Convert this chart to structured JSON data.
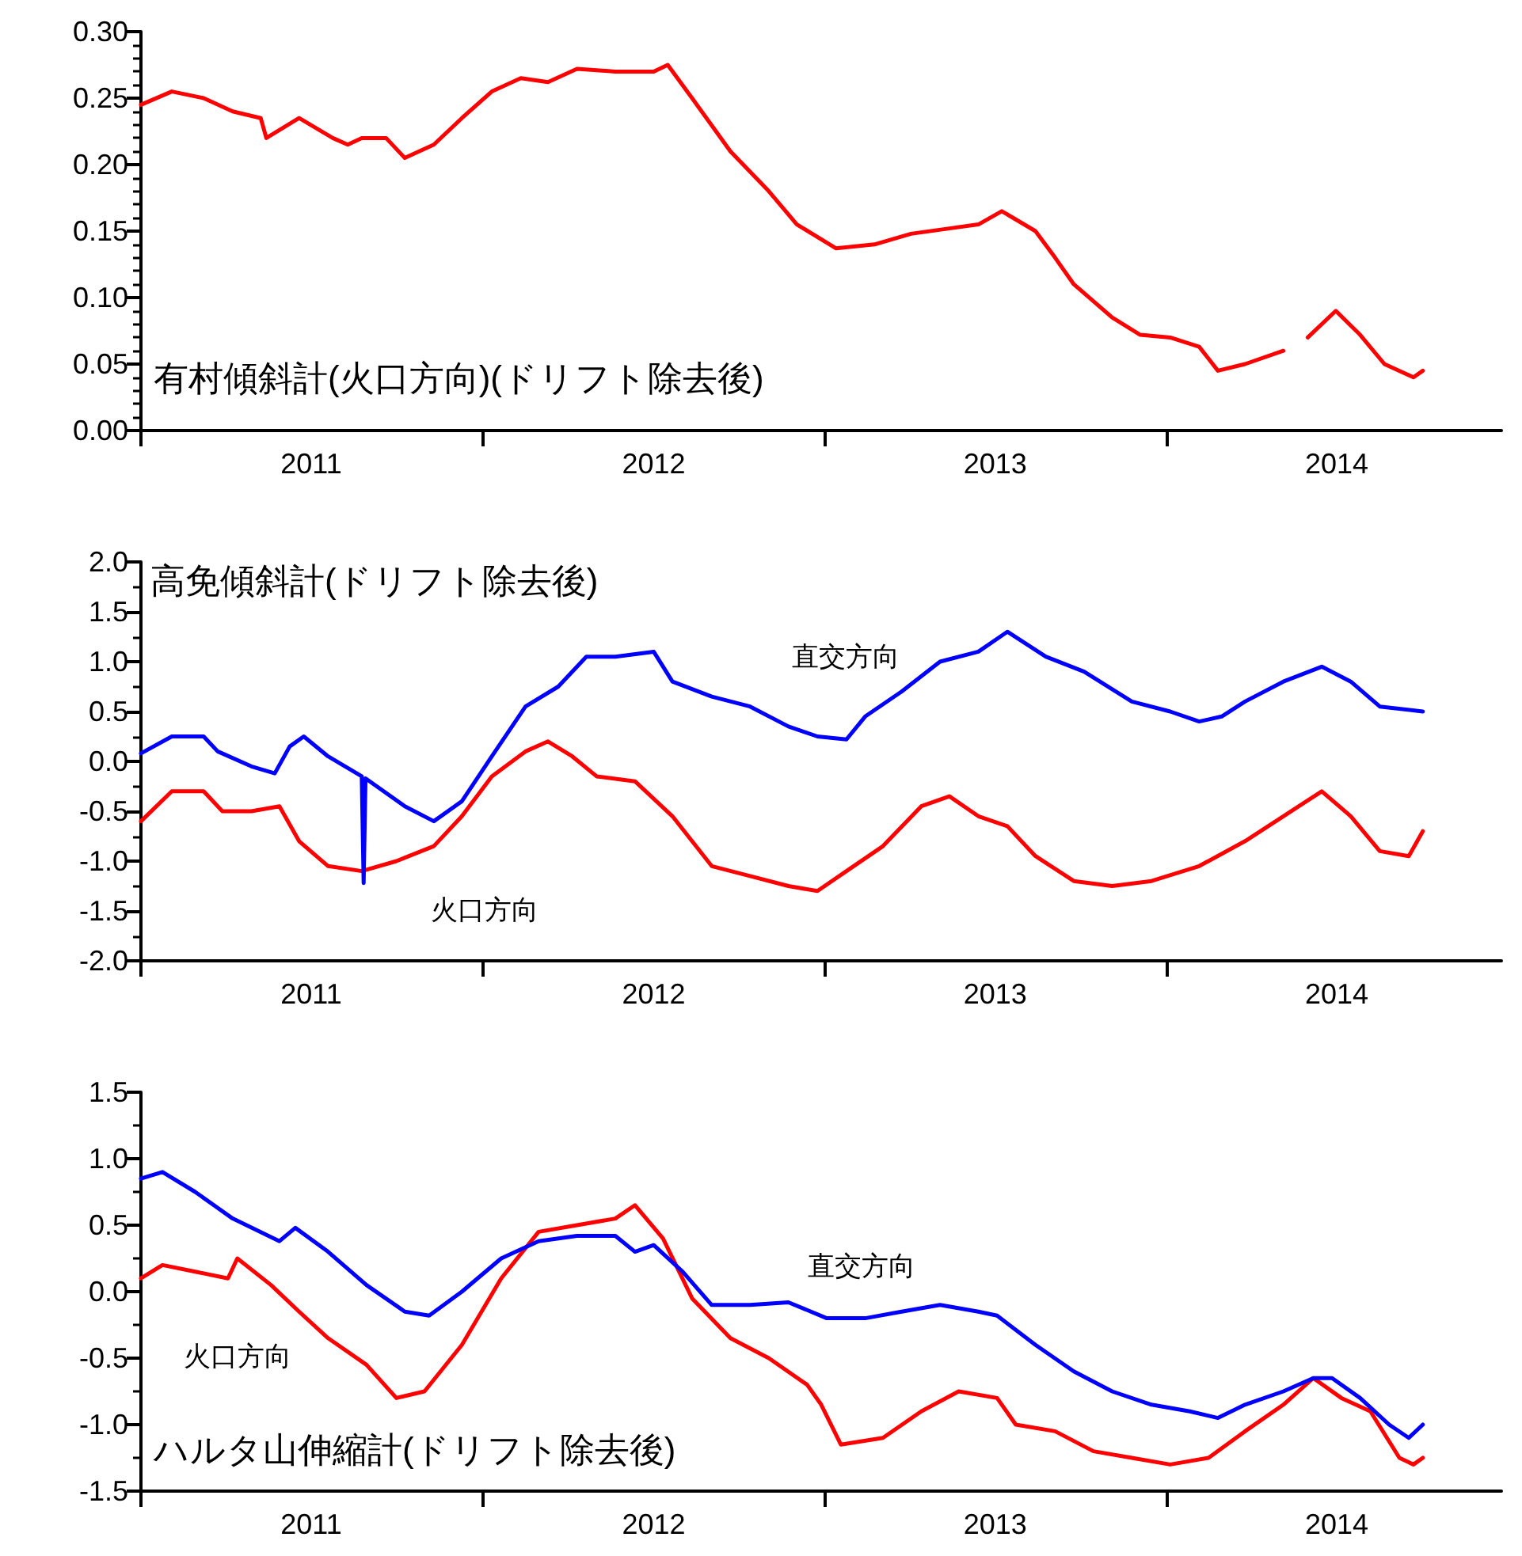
{
  "chart_data": [
    {
      "type": "line",
      "title": "有村傾斜計(火口方向)(ドリフト除去後)",
      "xlim": [
        "2011-01-01",
        "2014-12-25"
      ],
      "ylim": [
        0,
        0.3
      ],
      "xticks": [
        {
          "value": "2011-01-01",
          "label": null
        },
        {
          "value": "2011-07-02",
          "label": "2011"
        },
        {
          "value": "2012-01-01",
          "label": null
        },
        {
          "value": "2012-07-02",
          "label": "2012"
        },
        {
          "value": "2013-01-01",
          "label": null
        },
        {
          "value": "2013-07-02",
          "label": "2013"
        },
        {
          "value": "2014-01-01",
          "label": null
        },
        {
          "value": "2014-07-02",
          "label": "2014"
        }
      ],
      "yticks": [
        {
          "value": 0,
          "label": "0.00"
        },
        {
          "value": 0.05,
          "label": "0.05"
        },
        {
          "value": 0.1,
          "label": "0.10"
        },
        {
          "value": 0.15,
          "label": "0.15"
        },
        {
          "value": 0.2,
          "label": "0.20"
        },
        {
          "value": 0.25,
          "label": "0.25"
        },
        {
          "value": 0.3,
          "label": "0.30"
        }
      ],
      "grid": false,
      "marker": "none",
      "line_style": "solid",
      "series": [
        {
          "color": "#ff0000",
          "x": [
            "2011-01-01",
            "2011-02-03",
            "2011-03-09",
            "2011-04-09",
            "2011-05-09",
            "2011-05-15",
            "2011-06-19",
            "2011-07-25",
            "2011-08-10",
            "2011-08-25",
            "2011-09-20",
            "2011-10-10",
            "2011-11-10",
            "2011-12-10",
            "2012-01-11",
            "2012-02-11",
            "2012-03-11",
            "2012-04-11",
            "2012-05-22",
            "2012-07-02",
            "2012-07-17",
            "2012-08-12",
            "2012-09-22",
            "2012-11-02",
            "2012-12-02",
            "2013-01-13",
            "2013-02-23",
            "2013-04-03",
            "2013-05-14",
            "2013-06-14",
            "2013-07-09",
            "2013-08-14",
            "2013-09-04",
            "2013-09-24",
            "2013-11-04",
            "2013-12-04",
            "2014-01-05",
            "2014-02-05",
            "2014-02-25",
            "2014-03-26",
            "2014-05-06",
            "2014-05-20",
            "2014-06-01",
            "2014-07-01",
            "2014-07-27",
            "2014-08-22",
            "2014-09-22",
            "2014-10-02"
          ],
          "values": [
            0.245,
            0.255,
            0.25,
            0.24,
            0.235,
            0.22,
            0.235,
            0.22,
            0.215,
            0.22,
            0.22,
            0.205,
            0.215,
            0.235,
            0.255,
            0.265,
            0.262,
            0.272,
            0.27,
            0.27,
            0.275,
            0.25,
            0.21,
            0.18,
            0.155,
            0.137,
            0.14,
            0.148,
            0.152,
            0.155,
            0.165,
            0.15,
            0.13,
            0.11,
            0.085,
            0.072,
            0.07,
            0.063,
            0.045,
            0.05,
            0.06,
            null,
            0.07,
            0.09,
            0.072,
            0.05,
            0.04,
            0.045
          ]
        }
      ]
    },
    {
      "type": "line",
      "title": "高免傾斜計(ドリフト除去後)",
      "xlim": [
        "2011-01-01",
        "2014-12-25"
      ],
      "ylim": [
        -2,
        2
      ],
      "xticks": [
        {
          "value": "2011-01-01",
          "label": null
        },
        {
          "value": "2011-07-02",
          "label": "2011"
        },
        {
          "value": "2012-01-01",
          "label": null
        },
        {
          "value": "2012-07-02",
          "label": "2012"
        },
        {
          "value": "2013-01-01",
          "label": null
        },
        {
          "value": "2013-07-02",
          "label": "2013"
        },
        {
          "value": "2014-01-01",
          "label": null
        },
        {
          "value": "2014-07-02",
          "label": "2014"
        }
      ],
      "yticks": [
        {
          "value": -2,
          "label": "-2.0"
        },
        {
          "value": -1.5,
          "label": "-1.5"
        },
        {
          "value": -1,
          "label": "-1.0"
        },
        {
          "value": -0.5,
          "label": "-0.5"
        },
        {
          "value": 0,
          "label": "0.0"
        },
        {
          "value": 0.5,
          "label": "0.5"
        },
        {
          "value": 1,
          "label": "1.0"
        },
        {
          "value": 1.5,
          "label": "1.5"
        },
        {
          "value": 2,
          "label": "2.0"
        }
      ],
      "grid": false,
      "marker": "none",
      "line_style": "solid",
      "annotations": [
        "直交方向",
        "火口方向"
      ],
      "series": [
        {
          "color": "#ff0000",
          "x": [
            "2011-01-01",
            "2011-02-03",
            "2011-03-09",
            "2011-03-29",
            "2011-04-29",
            "2011-05-29",
            "2011-06-19",
            "2011-07-20",
            "2011-08-25",
            "2011-10-01",
            "2011-11-10",
            "2011-12-10",
            "2012-01-11",
            "2012-02-16",
            "2012-03-11",
            "2012-04-06",
            "2012-05-02",
            "2012-06-12",
            "2012-07-22",
            "2012-09-02",
            "2012-10-13",
            "2012-11-23",
            "2012-12-24",
            "2013-01-24",
            "2013-03-04",
            "2013-04-14",
            "2013-05-14",
            "2013-06-14",
            "2013-07-15",
            "2013-08-14",
            "2013-09-24",
            "2013-11-04",
            "2013-12-16",
            "2014-02-05",
            "2014-03-26",
            "2014-05-06",
            "2014-06-16",
            "2014-07-17",
            "2014-08-17",
            "2014-09-17",
            "2014-10-02"
          ],
          "values": [
            -0.6,
            -0.3,
            -0.3,
            -0.5,
            -0.5,
            -0.45,
            -0.8,
            -1.05,
            -1.1,
            -1.0,
            -0.85,
            -0.55,
            -0.15,
            0.1,
            0.2,
            0.05,
            -0.15,
            -0.2,
            -0.55,
            -1.05,
            -1.15,
            -1.25,
            -1.3,
            -1.1,
            -0.85,
            -0.45,
            -0.35,
            -0.55,
            -0.65,
            -0.95,
            -1.2,
            -1.25,
            -1.2,
            -1.05,
            -0.8,
            -0.55,
            -0.3,
            -0.55,
            -0.9,
            -0.95,
            -0.7
          ]
        },
        {
          "color": "#0000ff",
          "x": [
            "2011-01-01",
            "2011-02-03",
            "2011-03-09",
            "2011-03-24",
            "2011-04-29",
            "2011-05-24",
            "2011-06-09",
            "2011-06-24",
            "2011-07-20",
            "2011-08-25",
            "2011-08-27",
            "2011-08-29",
            "2011-10-10",
            "2011-11-10",
            "2011-12-10",
            "2012-01-11",
            "2012-02-16",
            "2012-03-22",
            "2012-04-21",
            "2012-05-22",
            "2012-07-02",
            "2012-07-22",
            "2012-09-02",
            "2012-10-13",
            "2012-11-23",
            "2012-12-24",
            "2013-01-24",
            "2013-02-13",
            "2013-03-24",
            "2013-05-04",
            "2013-06-14",
            "2013-07-15",
            "2013-08-25",
            "2013-10-05",
            "2013-11-25",
            "2014-01-05",
            "2014-02-05",
            "2014-03-01",
            "2014-03-26",
            "2014-05-06",
            "2014-06-16",
            "2014-07-17",
            "2014-08-17",
            "2014-10-02"
          ],
          "values": [
            0.08,
            0.25,
            0.25,
            0.1,
            -0.05,
            -0.12,
            0.15,
            0.25,
            0.05,
            -0.15,
            -1.22,
            -0.17,
            -0.45,
            -0.6,
            -0.4,
            0.05,
            0.55,
            0.75,
            1.05,
            1.05,
            1.1,
            0.8,
            0.65,
            0.55,
            0.35,
            0.25,
            0.22,
            0.45,
            0.7,
            1.0,
            1.1,
            1.3,
            1.05,
            0.9,
            0.6,
            0.5,
            0.4,
            0.45,
            0.6,
            0.8,
            0.95,
            0.8,
            0.55,
            0.5
          ]
        }
      ]
    },
    {
      "type": "line",
      "title": "ハルタ山伸縮計(ドリフト除去後)",
      "xlim": [
        "2011-01-01",
        "2014-12-25"
      ],
      "ylim": [
        -1.5,
        1.5
      ],
      "xticks": [
        {
          "value": "2011-01-01",
          "label": null
        },
        {
          "value": "2011-07-02",
          "label": "2011"
        },
        {
          "value": "2012-01-01",
          "label": null
        },
        {
          "value": "2012-07-02",
          "label": "2012"
        },
        {
          "value": "2013-01-01",
          "label": null
        },
        {
          "value": "2013-07-02",
          "label": "2013"
        },
        {
          "value": "2014-01-01",
          "label": null
        },
        {
          "value": "2014-07-02",
          "label": "2014"
        }
      ],
      "yticks": [
        {
          "value": -1.5,
          "label": "-1.5"
        },
        {
          "value": -1,
          "label": "-1.0"
        },
        {
          "value": -0.5,
          "label": "-0.5"
        },
        {
          "value": 0,
          "label": "0.0"
        },
        {
          "value": 0.5,
          "label": "0.5"
        },
        {
          "value": 1,
          "label": "1.0"
        },
        {
          "value": 1.5,
          "label": "1.5"
        }
      ],
      "grid": false,
      "marker": "none",
      "line_style": "solid",
      "annotations": [
        "直交方向",
        "火口方向"
      ],
      "series": [
        {
          "color": "#ff0000",
          "x": [
            "2011-01-01",
            "2011-01-24",
            "2011-02-28",
            "2011-04-04",
            "2011-04-14",
            "2011-05-20",
            "2011-06-19",
            "2011-07-20",
            "2011-08-30",
            "2011-10-01",
            "2011-10-31",
            "2011-12-10",
            "2012-01-21",
            "2012-03-01",
            "2012-04-11",
            "2012-05-22",
            "2012-06-12",
            "2012-07-12",
            "2012-08-12",
            "2012-09-22",
            "2012-11-02",
            "2012-12-13",
            "2012-12-28",
            "2013-01-18",
            "2013-03-04",
            "2013-04-14",
            "2013-05-24",
            "2013-07-04",
            "2013-07-24",
            "2013-09-04",
            "2013-10-15",
            "2013-11-25",
            "2014-01-05",
            "2014-02-15",
            "2014-03-26",
            "2014-05-06",
            "2014-06-07",
            "2014-07-07",
            "2014-08-07",
            "2014-09-07",
            "2014-09-22",
            "2014-10-02"
          ],
          "values": [
            0.1,
            0.2,
            0.15,
            0.1,
            0.25,
            0.05,
            -0.15,
            -0.35,
            -0.55,
            -0.8,
            -0.75,
            -0.4,
            0.1,
            0.45,
            0.5,
            0.55,
            0.65,
            0.4,
            -0.05,
            -0.35,
            -0.5,
            -0.7,
            -0.85,
            -1.15,
            -1.1,
            -0.9,
            -0.75,
            -0.8,
            -1.0,
            -1.05,
            -1.2,
            -1.25,
            -1.3,
            -1.25,
            -1.05,
            -0.85,
            -0.65,
            -0.8,
            -0.9,
            -1.25,
            -1.3,
            -1.25
          ]
        },
        {
          "color": "#0000ff",
          "x": [
            "2011-01-01",
            "2011-01-24",
            "2011-02-28",
            "2011-04-09",
            "2011-05-29",
            "2011-06-15",
            "2011-07-20",
            "2011-08-30",
            "2011-10-10",
            "2011-11-05",
            "2011-12-10",
            "2012-01-21",
            "2012-03-01",
            "2012-04-11",
            "2012-05-22",
            "2012-06-12",
            "2012-07-02",
            "2012-08-02",
            "2012-09-02",
            "2012-10-13",
            "2012-11-23",
            "2013-01-03",
            "2013-02-13",
            "2013-03-24",
            "2013-05-04",
            "2013-06-14",
            "2013-07-04",
            "2013-08-14",
            "2013-09-24",
            "2013-11-04",
            "2013-12-16",
            "2014-01-26",
            "2014-02-25",
            "2014-03-26",
            "2014-05-06",
            "2014-06-07",
            "2014-06-27",
            "2014-07-27",
            "2014-08-27",
            "2014-09-17",
            "2014-10-02"
          ],
          "values": [
            0.85,
            0.9,
            0.75,
            0.55,
            0.38,
            0.48,
            0.3,
            0.05,
            -0.15,
            -0.18,
            0.0,
            0.25,
            0.38,
            0.42,
            0.42,
            0.3,
            0.35,
            0.15,
            -0.1,
            -0.1,
            -0.08,
            -0.2,
            -0.2,
            -0.15,
            -0.1,
            -0.15,
            -0.18,
            -0.4,
            -0.6,
            -0.75,
            -0.85,
            -0.9,
            -0.95,
            -0.85,
            -0.75,
            -0.65,
            -0.65,
            -0.8,
            -1.0,
            -1.1,
            -1.0
          ]
        }
      ]
    }
  ]
}
